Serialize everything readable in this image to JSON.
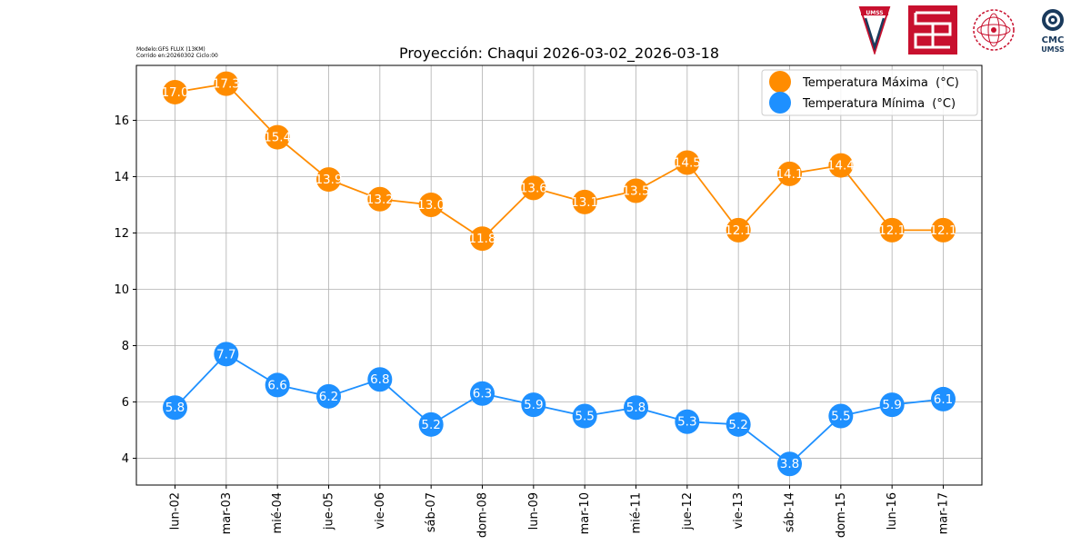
{
  "header": {
    "model_line1": "Modelo:GFS FLUX (13KM)",
    "model_line2": "Corrido en:20260302 Ciclo:00",
    "logos": {
      "logo1_text": "UMSS",
      "logo4_text1": "CMC",
      "logo4_text2": "UMSS"
    }
  },
  "colors": {
    "max": "#ff8c00",
    "min": "#1e90ff",
    "grid": "#b0b0b0",
    "logo_red": "#c8102e",
    "logo_navy": "#1a3a5c"
  },
  "chart_data": {
    "type": "line",
    "title": "Proyección: Chaqui 2026-03-02_2026-03-18",
    "xlabel": "",
    "ylabel": "",
    "categories": [
      "lun-02",
      "mar-03",
      "mié-04",
      "jue-05",
      "vie-06",
      "sáb-07",
      "dom-08",
      "lun-09",
      "mar-10",
      "mié-11",
      "jue-12",
      "vie-13",
      "sáb-14",
      "dom-15",
      "lun-16",
      "mar-17"
    ],
    "series": [
      {
        "name": "Temperatura Máxima  (°C)",
        "color": "#ff8c00",
        "values": [
          17.0,
          17.3,
          15.4,
          13.9,
          13.2,
          13.0,
          11.8,
          13.6,
          13.1,
          13.5,
          14.5,
          12.1,
          14.1,
          14.4,
          12.1,
          12.1
        ]
      },
      {
        "name": "Temperatura Mínima  (°C)",
        "color": "#1e90ff",
        "values": [
          5.8,
          7.7,
          6.6,
          6.2,
          6.8,
          5.2,
          6.3,
          5.9,
          5.5,
          5.8,
          5.3,
          5.2,
          3.8,
          5.5,
          5.9,
          6.1
        ]
      }
    ],
    "ylim": [
      3.05,
      17.95
    ],
    "yticks": [
      4,
      6,
      8,
      10,
      12,
      14,
      16
    ],
    "grid": true,
    "legend": "top-right"
  }
}
